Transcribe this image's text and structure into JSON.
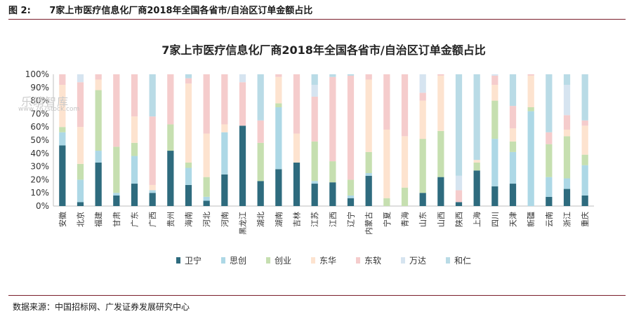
{
  "header": {
    "figure_label": "图 2:",
    "figure_title": "7家上市医疗信息化厂商2018年全国各省市/自治区订单金额占比"
  },
  "watermark": {
    "text": "乐晴智库",
    "url": "www.767stock.com"
  },
  "source": "数据来源：中国招标网、广发证券发展研究中心",
  "chart_data": {
    "type": "bar",
    "stacked": true,
    "title": "7家上市医疗信息化厂商2018年全国各省市/自治区订单金额占比",
    "xlabel": "",
    "ylabel": "",
    "ylim": [
      0,
      100
    ],
    "y_ticks": [
      "0%",
      "10%",
      "20%",
      "30%",
      "40%",
      "50%",
      "60%",
      "70%",
      "80%",
      "90%",
      "100%"
    ],
    "legend_position": "bottom",
    "grid": false,
    "categories": [
      "安徽",
      "北京",
      "福建",
      "甘肃",
      "广东",
      "广西",
      "贵州",
      "海南",
      "河北",
      "河南",
      "黑龙江",
      "湖北",
      "湖南",
      "吉林",
      "江苏",
      "江西",
      "辽宁",
      "内蒙古",
      "宁夏",
      "青海",
      "山东",
      "山西",
      "陕西",
      "上海",
      "四川",
      "天津",
      "新疆",
      "云南",
      "浙江",
      "重庆"
    ],
    "series": [
      {
        "name": "卫宁",
        "color": "#2e6b7e",
        "values": [
          46,
          3,
          33,
          8,
          17,
          10,
          42,
          16,
          4,
          24,
          61,
          19,
          28,
          33,
          17,
          18,
          6,
          23,
          0,
          0,
          10,
          22,
          3,
          27,
          15,
          17,
          0,
          7,
          13,
          8
        ]
      },
      {
        "name": "思创",
        "color": "#add8e6",
        "values": [
          10,
          17,
          9,
          2,
          21,
          2,
          0,
          13,
          3,
          32,
          0,
          0,
          47,
          0,
          2,
          0,
          2,
          2,
          0,
          0,
          0,
          0,
          0,
          0,
          36,
          24,
          72,
          15,
          8,
          23
        ]
      },
      {
        "name": "创业",
        "color": "#c6dfb0",
        "values": [
          4,
          12,
          46,
          35,
          10,
          0,
          20,
          4,
          15,
          0,
          0,
          29,
          3,
          0,
          30,
          16,
          12,
          16,
          6,
          14,
          41,
          35,
          0,
          6,
          29,
          8,
          3,
          25,
          32,
          8
        ]
      },
      {
        "name": "东华",
        "color": "#fde3cf",
        "values": [
          32,
          28,
          8,
          0,
          20,
          4,
          0,
          60,
          33,
          6,
          0,
          0,
          20,
          22,
          0,
          0,
          0,
          55,
          52,
          39,
          29,
          42,
          0,
          2,
          12,
          10,
          24,
          0,
          5,
          22
        ]
      },
      {
        "name": "东软",
        "color": "#f5cccc",
        "values": [
          8,
          34,
          4,
          55,
          32,
          52,
          38,
          4,
          45,
          38,
          33,
          17,
          2,
          45,
          34,
          64,
          79,
          4,
          42,
          47,
          6,
          1,
          9,
          0,
          7,
          17,
          1,
          9,
          11,
          4
        ]
      },
      {
        "name": "万达",
        "color": "#d6e4f0",
        "values": [
          0,
          6,
          0,
          0,
          0,
          0,
          0,
          0,
          0,
          0,
          6,
          0,
          0,
          0,
          9,
          0,
          0,
          0,
          0,
          0,
          14,
          0,
          11,
          0,
          1,
          0,
          0,
          0,
          23,
          0
        ]
      },
      {
        "name": "和仁",
        "color": "#b9dbe6",
        "values": [
          0,
          0,
          0,
          0,
          0,
          32,
          0,
          3,
          0,
          0,
          0,
          35,
          0,
          0,
          8,
          2,
          1,
          0,
          0,
          0,
          0,
          0,
          77,
          65,
          0,
          24,
          0,
          44,
          8,
          35
        ]
      }
    ]
  }
}
